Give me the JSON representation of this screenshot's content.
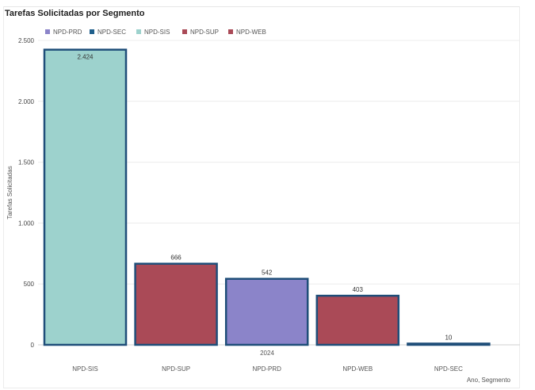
{
  "chart_data": {
    "type": "bar",
    "title": "Tarefas Solicitadas por Segmento",
    "ylabel": "Tarefas Solicitadas",
    "xlabel": "Ano, Segmento",
    "group_label": "2024",
    "ylim": [
      0,
      2500
    ],
    "yticks": [
      0,
      500,
      1000,
      1500,
      2000,
      2500
    ],
    "ytick_labels": [
      "0",
      "500",
      "1.000",
      "1.500",
      "2.000",
      "2.500"
    ],
    "grid": true,
    "legend_position": "top-left",
    "legend": [
      {
        "name": "NPD-PRD",
        "color": "#8b84c9"
      },
      {
        "name": "NPD-SEC",
        "color": "#1f5f8b"
      },
      {
        "name": "NPD-SIS",
        "color": "#9dd2cd"
      },
      {
        "name": "NPD-SUP",
        "color": "#aa4a57"
      },
      {
        "name": "NPD-WEB",
        "color": "#aa4a57"
      }
    ],
    "categories": [
      "NPD-SIS",
      "NPD-SUP",
      "NPD-PRD",
      "NPD-WEB",
      "NPD-SEC"
    ],
    "values": [
      2424,
      666,
      542,
      403,
      10
    ],
    "value_labels": [
      "2.424",
      "666",
      "542",
      "403",
      "10"
    ],
    "bar_colors": [
      "#9dd2cd",
      "#aa4a57",
      "#8b84c9",
      "#aa4a57",
      "#1f5f8b"
    ],
    "bar_outline_color": "#1f4e79"
  }
}
